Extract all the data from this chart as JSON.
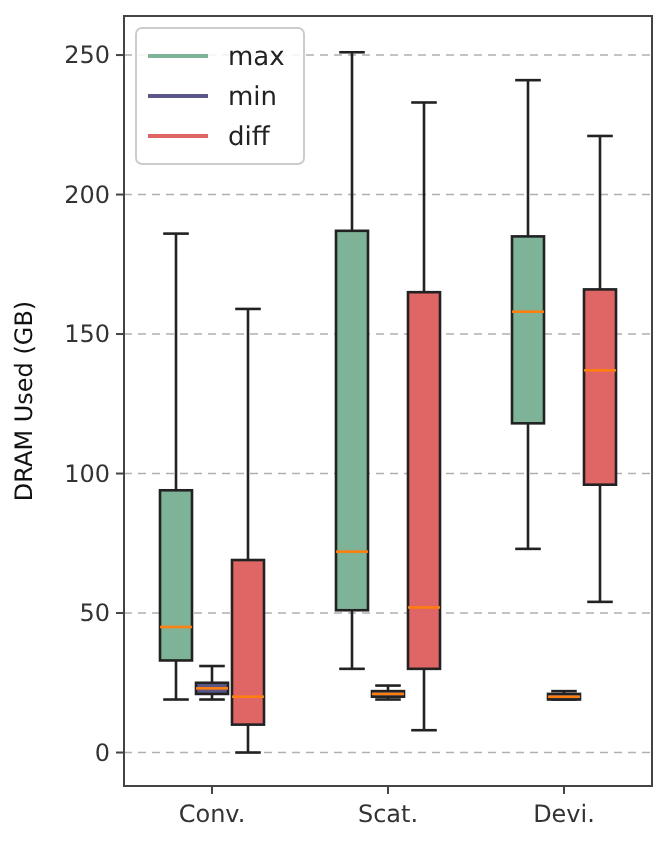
{
  "chart_data": {
    "type": "box",
    "ylabel": "DRAM Used (GB)",
    "categories": [
      "Conv.",
      "Scat.",
      "Devi."
    ],
    "ylim": [
      -12,
      264
    ],
    "yticks": [
      0,
      50,
      100,
      150,
      200,
      250
    ],
    "grid": "y",
    "legend": "top left",
    "series": [
      {
        "name": "max",
        "color": "#7fb398",
        "boxes": [
          {
            "low": 19,
            "q1": 33,
            "median": 45,
            "q3": 94,
            "high": 186
          },
          {
            "low": 30,
            "q1": 51,
            "median": 72,
            "q3": 187,
            "high": 251
          },
          {
            "low": 73,
            "q1": 118,
            "median": 158,
            "q3": 185,
            "high": 241
          }
        ]
      },
      {
        "name": "min",
        "color": "#5a5788",
        "boxes": [
          {
            "low": 19,
            "q1": 21,
            "median": 23,
            "q3": 25,
            "high": 31
          },
          {
            "low": 19,
            "q1": 20,
            "median": 21,
            "q3": 22,
            "high": 24
          },
          {
            "low": 19,
            "q1": 19,
            "median": 20,
            "q3": 21,
            "high": 22
          }
        ]
      },
      {
        "name": "diff",
        "color": "#e06666",
        "boxes": [
          {
            "low": 0,
            "q1": 10,
            "median": 20,
            "q3": 69,
            "high": 159
          },
          {
            "low": 8,
            "q1": 30,
            "median": 52,
            "q3": 165,
            "high": 233
          },
          {
            "low": 54,
            "q1": 96,
            "median": 137,
            "q3": 166,
            "high": 221
          }
        ]
      }
    ]
  }
}
